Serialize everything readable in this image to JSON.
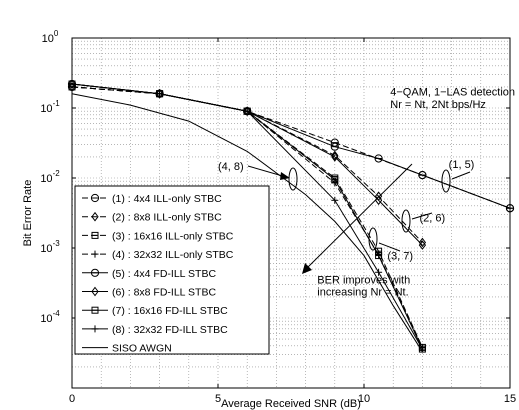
{
  "chart_data": {
    "type": "line",
    "title": "",
    "xlabel": "Average Received SNR (dB)",
    "ylabel": "Bit Error Rate",
    "xlim": [
      0,
      15
    ],
    "ylim": [
      1e-05,
      1
    ],
    "yscale": "log",
    "grid": true,
    "x_ticks": [
      0,
      5,
      10,
      15
    ],
    "y_ticks": [
      {
        "value": 1,
        "base": "10",
        "exp": "0"
      },
      {
        "value": 0.1,
        "base": "10",
        "exp": "-1"
      },
      {
        "value": 0.01,
        "base": "10",
        "exp": "-2"
      },
      {
        "value": 0.001,
        "base": "10",
        "exp": "-3"
      },
      {
        "value": 0.0001,
        "base": "10",
        "exp": "-4"
      }
    ],
    "legend_position": "left",
    "series": [
      {
        "name": "(1) : 4x4  ILL-only STBC",
        "marker": "circle",
        "dash": "dash",
        "x": [
          0,
          3,
          6,
          9,
          12,
          15
        ],
        "y": [
          0.2,
          0.16,
          0.09,
          0.032,
          0.011,
          0.0037
        ]
      },
      {
        "name": "(2) : 8x8 ILL-only STBC",
        "marker": "diamond",
        "dash": "dash",
        "x": [
          0,
          3,
          6,
          9,
          10.5,
          12
        ],
        "y": [
          0.2,
          0.16,
          0.09,
          0.021,
          0.0055,
          0.0012
        ]
      },
      {
        "name": "(3) : 16x16 ILL-only STBC",
        "marker": "square",
        "dash": "dash",
        "x": [
          0,
          3,
          6,
          9,
          10.5,
          12
        ],
        "y": [
          0.2,
          0.16,
          0.09,
          0.01,
          0.0009,
          3.8e-05
        ]
      },
      {
        "name": "(4) : 32x32 ILL-only STBC",
        "marker": "plus",
        "dash": "dash",
        "x": [
          0,
          3,
          6,
          9,
          10.5,
          12
        ],
        "y": [
          0.2,
          0.16,
          0.09,
          0.0085,
          0.0008,
          3.8e-05
        ]
      },
      {
        "name": "(5) : 4x4 FD-ILL STBC",
        "marker": "circle",
        "dash": "solid",
        "x": [
          0,
          3,
          6,
          9,
          10.5,
          12,
          15
        ],
        "y": [
          0.22,
          0.16,
          0.09,
          0.028,
          0.019,
          0.011,
          0.0037
        ]
      },
      {
        "name": "(6) : 8x8 FD-ILL STBC",
        "marker": "diamond",
        "dash": "solid",
        "x": [
          0,
          3,
          6,
          9,
          10.5,
          12
        ],
        "y": [
          0.22,
          0.16,
          0.09,
          0.02,
          0.0048,
          0.0011
        ]
      },
      {
        "name": "(7) : 16x16 FD-ILL STBC",
        "marker": "square",
        "dash": "solid",
        "x": [
          0,
          3,
          6,
          9,
          10.5,
          12
        ],
        "y": [
          0.22,
          0.16,
          0.09,
          0.0095,
          0.00078,
          3.6e-05
        ]
      },
      {
        "name": "(8) : 32x32 FD-ILL STBC",
        "marker": "plus",
        "dash": "solid",
        "x": [
          0,
          3,
          6,
          9,
          10.5,
          12
        ],
        "y": [
          0.22,
          0.16,
          0.09,
          0.0048,
          0.00045,
          3.6e-05
        ]
      },
      {
        "name": "SISO AWGN",
        "marker": "none",
        "dash": "solid",
        "x": [
          0,
          2,
          4,
          6,
          8,
          9,
          10,
          11,
          12
        ],
        "y": [
          0.16,
          0.11,
          0.065,
          0.024,
          0.0058,
          0.0024,
          0.00078,
          0.00015,
          3.3e-05
        ]
      }
    ],
    "annotations": [
      {
        "text": "4−QAM, 1−LAS detection",
        "x": 10.9,
        "y": 0.15
      },
      {
        "text": "Nr = Nt, 2Nt bps/Hz",
        "x": 10.9,
        "y": 0.1
      },
      {
        "text": "(4, 8)",
        "x": 5.0,
        "y": 0.013
      },
      {
        "text": "(1, 5)",
        "x": 12.9,
        "y": 0.014
      },
      {
        "text": "(2, 6)",
        "x": 11.9,
        "y": 0.0024
      },
      {
        "text": "(3, 7)",
        "x": 10.8,
        "y": 0.00068
      },
      {
        "text": "BER improves with",
        "x": 8.4,
        "y": 0.00031
      },
      {
        "text": "increasing Nr = Nt.",
        "x": 8.4,
        "y": 0.00021
      }
    ]
  }
}
